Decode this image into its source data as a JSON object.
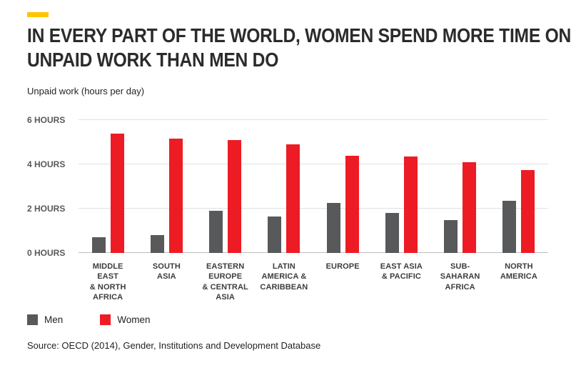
{
  "colors": {
    "accent_yellow": "#fdc500",
    "men_gray": "#58595b",
    "women_red": "#ed1c24"
  },
  "header": {
    "title_line1": "IN EVERY PART OF THE WORLD, WOMEN SPEND MORE TIME ON",
    "title_line2": "UNPAID WORK THAN MEN DO"
  },
  "axis_note": "Unpaid work (hours per day)",
  "source": "Source: OECD (2014), Gender, Institutions and Development Database",
  "chart_data": {
    "type": "bar",
    "title": "In every part of the world, women spend more time on unpaid work than men do",
    "ylabel": "Unpaid work (hours per day)",
    "xlabel": "",
    "ylim": [
      0,
      6
    ],
    "grid": true,
    "legend_position": "bottom-left",
    "yticks": [
      {
        "value": 0,
        "label": "0 HOURS"
      },
      {
        "value": 2,
        "label": "2 HOURS"
      },
      {
        "value": 4,
        "label": "4 HOURS"
      },
      {
        "value": 6,
        "label": "6 HOURS"
      }
    ],
    "categories": [
      "Middle East & North Africa",
      "South Asia",
      "Eastern Europe & Central Asia",
      "Latin America & Caribbean",
      "Europe",
      "East Asia & Pacific",
      "Sub-Saharan Africa",
      "North America"
    ],
    "category_labels": [
      "MIDDLE\nEAST\n& NORTH\nAFRICA",
      "SOUTH\nASIA",
      "EASTERN\nEUROPE\n& CENTRAL\nASIA",
      "LATIN\nAMERICA &\nCARIBBEAN",
      "EUROPE",
      "EAST ASIA\n& PACIFIC",
      "SUB-SAHARAN\nAFRICA",
      "NORTH\nAMERICA"
    ],
    "series": [
      {
        "name": "Men",
        "color": "#58595b",
        "values": [
          0.7,
          0.8,
          1.9,
          1.65,
          2.25,
          1.8,
          1.5,
          2.35
        ]
      },
      {
        "name": "Women",
        "color": "#ed1c24",
        "values": [
          5.4,
          5.15,
          5.1,
          4.9,
          4.4,
          4.35,
          4.1,
          3.75
        ]
      }
    ]
  }
}
